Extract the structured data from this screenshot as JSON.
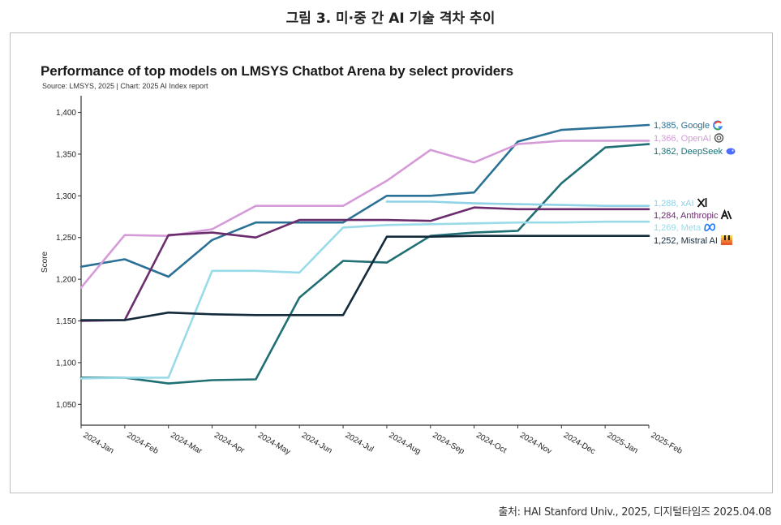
{
  "figure": {
    "caption": "그림 3. 미·중 간 AI 기술 격차 추이",
    "source": "출처: HAI Stanford Univ., 2025, 디지털타임즈 2025.04.08"
  },
  "chart_data": {
    "type": "line",
    "title": "Performance of top models on LMSYS Chatbot Arena by select providers",
    "subtitle": "Source: LMSYS, 2025 | Chart: 2025 AI Index report",
    "xlabel": "",
    "ylabel": "Score",
    "ylim": [
      1025,
      1420
    ],
    "yticks": [
      1050,
      1100,
      1150,
      1200,
      1250,
      1300,
      1350,
      1400
    ],
    "ytick_labels": [
      "1,050",
      "1,100",
      "1,150",
      "1,200",
      "1,250",
      "1,300",
      "1,350",
      "1,400"
    ],
    "categories": [
      "2024-Jan",
      "2024-Feb",
      "2024-Mar",
      "2024-Apr",
      "2024-May",
      "2024-Jun",
      "2024-Jul",
      "2024-Aug",
      "2024-Sep",
      "2024-Oct",
      "2024-Nov",
      "2024-Dec",
      "2025-Jan",
      "2025-Feb"
    ],
    "series": [
      {
        "name": "Google",
        "end_label": "1,385, Google",
        "icon": "google-icon",
        "color": "#2b7196",
        "points": [
          [
            0,
            1215
          ],
          [
            1,
            1224
          ],
          [
            2,
            1203
          ],
          [
            3,
            1247
          ],
          [
            4,
            1268
          ],
          [
            5,
            1268
          ],
          [
            6,
            1268
          ],
          [
            7,
            1300
          ],
          [
            8,
            1300
          ],
          [
            9,
            1304
          ],
          [
            10,
            1365
          ],
          [
            11,
            1379
          ],
          [
            12,
            1382
          ],
          [
            13,
            1385
          ]
        ]
      },
      {
        "name": "OpenAI",
        "end_label": "1,366, OpenAI",
        "icon": "openai-icon",
        "color": "#d59ad8",
        "points": [
          [
            0,
            1190
          ],
          [
            1,
            1253
          ],
          [
            2,
            1252
          ],
          [
            3,
            1260
          ],
          [
            4,
            1288
          ],
          [
            5,
            1288
          ],
          [
            6,
            1288
          ],
          [
            7,
            1318
          ],
          [
            8,
            1355
          ],
          [
            9,
            1340
          ],
          [
            10,
            1362
          ],
          [
            11,
            1366
          ],
          [
            12,
            1366
          ],
          [
            13,
            1366
          ]
        ]
      },
      {
        "name": "DeepSeek",
        "end_label": "1,362, DeepSeek",
        "icon": "deepseek-icon",
        "color": "#1f6f74",
        "points": [
          [
            0,
            1082
          ],
          [
            1,
            1082
          ],
          [
            2,
            1075
          ],
          [
            3,
            1079
          ],
          [
            4,
            1080
          ],
          [
            5,
            1178
          ],
          [
            6,
            1222
          ],
          [
            7,
            1220
          ],
          [
            8,
            1252
          ],
          [
            9,
            1256
          ],
          [
            10,
            1258
          ],
          [
            11,
            1315
          ],
          [
            12,
            1358
          ],
          [
            13,
            1362
          ]
        ]
      },
      {
        "name": "xAI",
        "end_label": "1,288, xAI",
        "icon": "xai-icon",
        "color": "#8fd3e6",
        "points": [
          [
            7,
            1293
          ],
          [
            8,
            1293
          ],
          [
            9,
            1291
          ],
          [
            10,
            1290
          ],
          [
            11,
            1289
          ],
          [
            12,
            1288
          ],
          [
            13,
            1288
          ]
        ]
      },
      {
        "name": "Anthropic",
        "end_label": "1,284, Anthropic",
        "icon": "anthropic-icon",
        "color": "#6b2c6d",
        "points": [
          [
            0,
            1150
          ],
          [
            1,
            1151
          ],
          [
            2,
            1253
          ],
          [
            3,
            1256
          ],
          [
            4,
            1250
          ],
          [
            5,
            1271
          ],
          [
            6,
            1271
          ],
          [
            7,
            1271
          ],
          [
            8,
            1270
          ],
          [
            9,
            1286
          ],
          [
            10,
            1284
          ],
          [
            11,
            1284
          ],
          [
            12,
            1284
          ],
          [
            13,
            1284
          ]
        ]
      },
      {
        "name": "Meta",
        "end_label": "1,269, Meta",
        "icon": "meta-icon",
        "color": "#9adbe9",
        "points": [
          [
            0,
            1081
          ],
          [
            1,
            1082
          ],
          [
            2,
            1082
          ],
          [
            3,
            1210
          ],
          [
            4,
            1210
          ],
          [
            5,
            1208
          ],
          [
            6,
            1262
          ],
          [
            7,
            1265
          ],
          [
            8,
            1266
          ],
          [
            9,
            1267
          ],
          [
            10,
            1268
          ],
          [
            11,
            1268
          ],
          [
            12,
            1269
          ],
          [
            13,
            1269
          ]
        ]
      },
      {
        "name": "Mistral AI",
        "end_label": "1,252, Mistral AI",
        "icon": "mistral-icon",
        "color": "#132a3b",
        "points": [
          [
            0,
            1151
          ],
          [
            1,
            1151
          ],
          [
            2,
            1160
          ],
          [
            3,
            1158
          ],
          [
            4,
            1157
          ],
          [
            5,
            1157
          ],
          [
            6,
            1157
          ],
          [
            7,
            1251
          ],
          [
            8,
            1251
          ],
          [
            9,
            1252
          ],
          [
            10,
            1252
          ],
          [
            11,
            1252
          ],
          [
            12,
            1252
          ],
          [
            13,
            1252
          ]
        ]
      }
    ],
    "colors": {
      "axis": "#333333",
      "label_google": "#2b7196",
      "label_openai": "#d59ad8",
      "label_deepseek": "#1f6f74",
      "label_xai": "#8fd3e6",
      "label_anthropic": "#6b2c6d",
      "label_meta": "#9adbe9",
      "label_mistral": "#132a3b"
    }
  }
}
